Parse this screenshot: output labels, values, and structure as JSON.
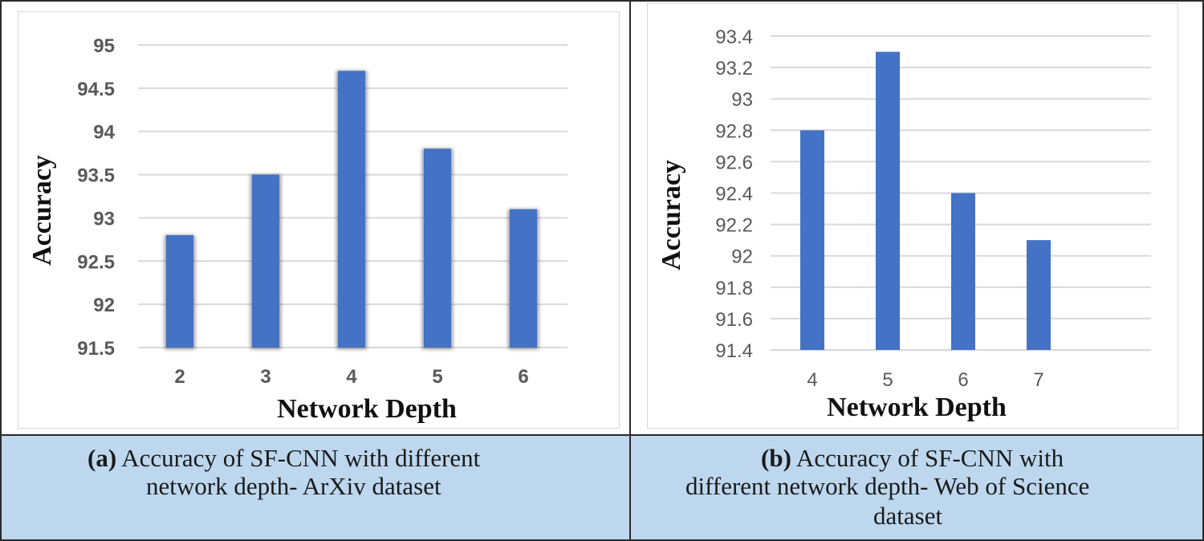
{
  "chart_data": [
    {
      "type": "bar",
      "categories": [
        "2",
        "3",
        "4",
        "5",
        "6"
      ],
      "values": [
        92.8,
        93.5,
        94.7,
        93.8,
        93.1
      ],
      "xlabel": "Network Depth",
      "ylabel": "Accuracy",
      "ylim": [
        91.5,
        95
      ],
      "yticks": [
        "91.5",
        "92",
        "92.5",
        "93",
        "93.5",
        "94",
        "94.5",
        "95"
      ],
      "grid": true,
      "legend": "none",
      "bar_color": "#4472c4"
    },
    {
      "type": "bar",
      "categories": [
        "4",
        "5",
        "6",
        "7"
      ],
      "values": [
        92.8,
        93.3,
        92.4,
        92.1
      ],
      "xlabel": "Network Depth",
      "ylabel": "Accuracy",
      "ylim": [
        91.4,
        93.4
      ],
      "yticks": [
        "91.4",
        "91.6",
        "91.8",
        "92",
        "92.2",
        "92.4",
        "92.6",
        "92.8",
        "93",
        "93.2",
        "93.4"
      ],
      "grid": true,
      "legend": "none",
      "bar_color": "#4472c4"
    }
  ],
  "captions": {
    "a": {
      "tag": "(a)",
      "line1": " Accuracy of SF-CNN with different",
      "line2": "network depth- ArXiv dataset"
    },
    "b": {
      "tag": "(b)",
      "line1": " Accuracy of SF-CNN with",
      "line2": "different network depth- Web of Science",
      "line3": "dataset"
    }
  }
}
